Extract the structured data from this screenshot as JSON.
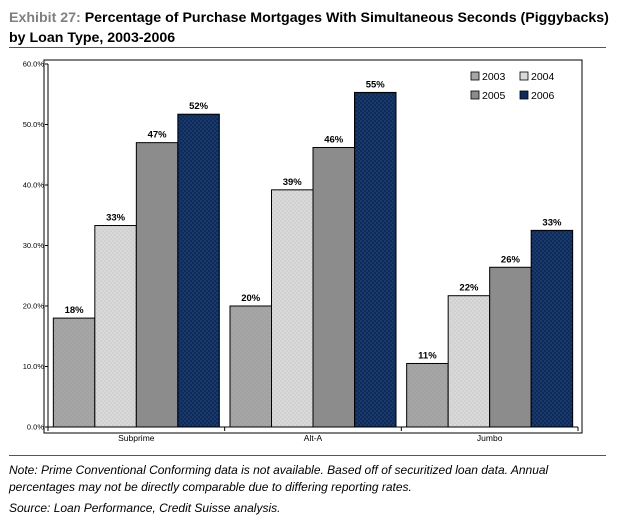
{
  "title": {
    "exhibit": "Exhibit 27:",
    "text": "Percentage of Purchase Mortgages With Simultaneous Seconds (Piggybacks) by Loan Type, 2003-2006"
  },
  "note": "Note: Prime Conventional Conforming data is not available. Based off of securitized loan data. Annual percentages may not be directly comparable due to differing reporting rates.",
  "source": "Source: Loan Performance, Credit Suisse analysis.",
  "colors": {
    "2003": "#a6a6a6",
    "2004": "#d9d9d9",
    "2005": "#8c8c8c",
    "2006": "#0d2c5e"
  },
  "chart_data": {
    "type": "bar",
    "categories": [
      "Subprime",
      "Alt-A",
      "Jumbo"
    ],
    "series": [
      {
        "name": "2003",
        "values": [
          0.18,
          0.2,
          0.105
        ],
        "labels": [
          "18%",
          "20%",
          "11%"
        ]
      },
      {
        "name": "2004",
        "values": [
          0.333,
          0.392,
          0.217
        ],
        "labels": [
          "33%",
          "39%",
          "22%"
        ]
      },
      {
        "name": "2005",
        "values": [
          0.47,
          0.462,
          0.264
        ],
        "labels": [
          "47%",
          "46%",
          "26%"
        ]
      },
      {
        "name": "2006",
        "values": [
          0.517,
          0.553,
          0.325
        ],
        "labels": [
          "52%",
          "55%",
          "33%"
        ]
      }
    ],
    "ylim": [
      0,
      0.6
    ],
    "yticks": [
      "0.0%",
      "10.0%",
      "20.0%",
      "30.0%",
      "40.0%",
      "50.0%",
      "60.0%"
    ],
    "legend_position": "top-right",
    "grid": false
  }
}
